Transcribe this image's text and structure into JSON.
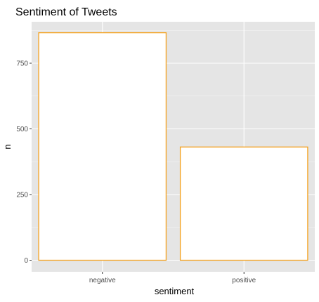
{
  "chart_data": {
    "type": "bar",
    "title": "Sentiment of Tweets",
    "xlabel": "sentiment",
    "ylabel": "n",
    "categories": [
      "negative",
      "positive"
    ],
    "values": [
      866,
      431
    ],
    "ylim": [
      0,
      900
    ],
    "yticks": [
      0,
      250,
      500,
      750
    ],
    "grid": true,
    "legend": "none",
    "colors": {
      "panel_background": "#e5e5e5",
      "grid": "#ffffff",
      "bar_fill": "#ffffff",
      "bar_outline": "#f4a11d",
      "tick_text": "#4d4d4d",
      "tick_mark": "#333333"
    }
  }
}
